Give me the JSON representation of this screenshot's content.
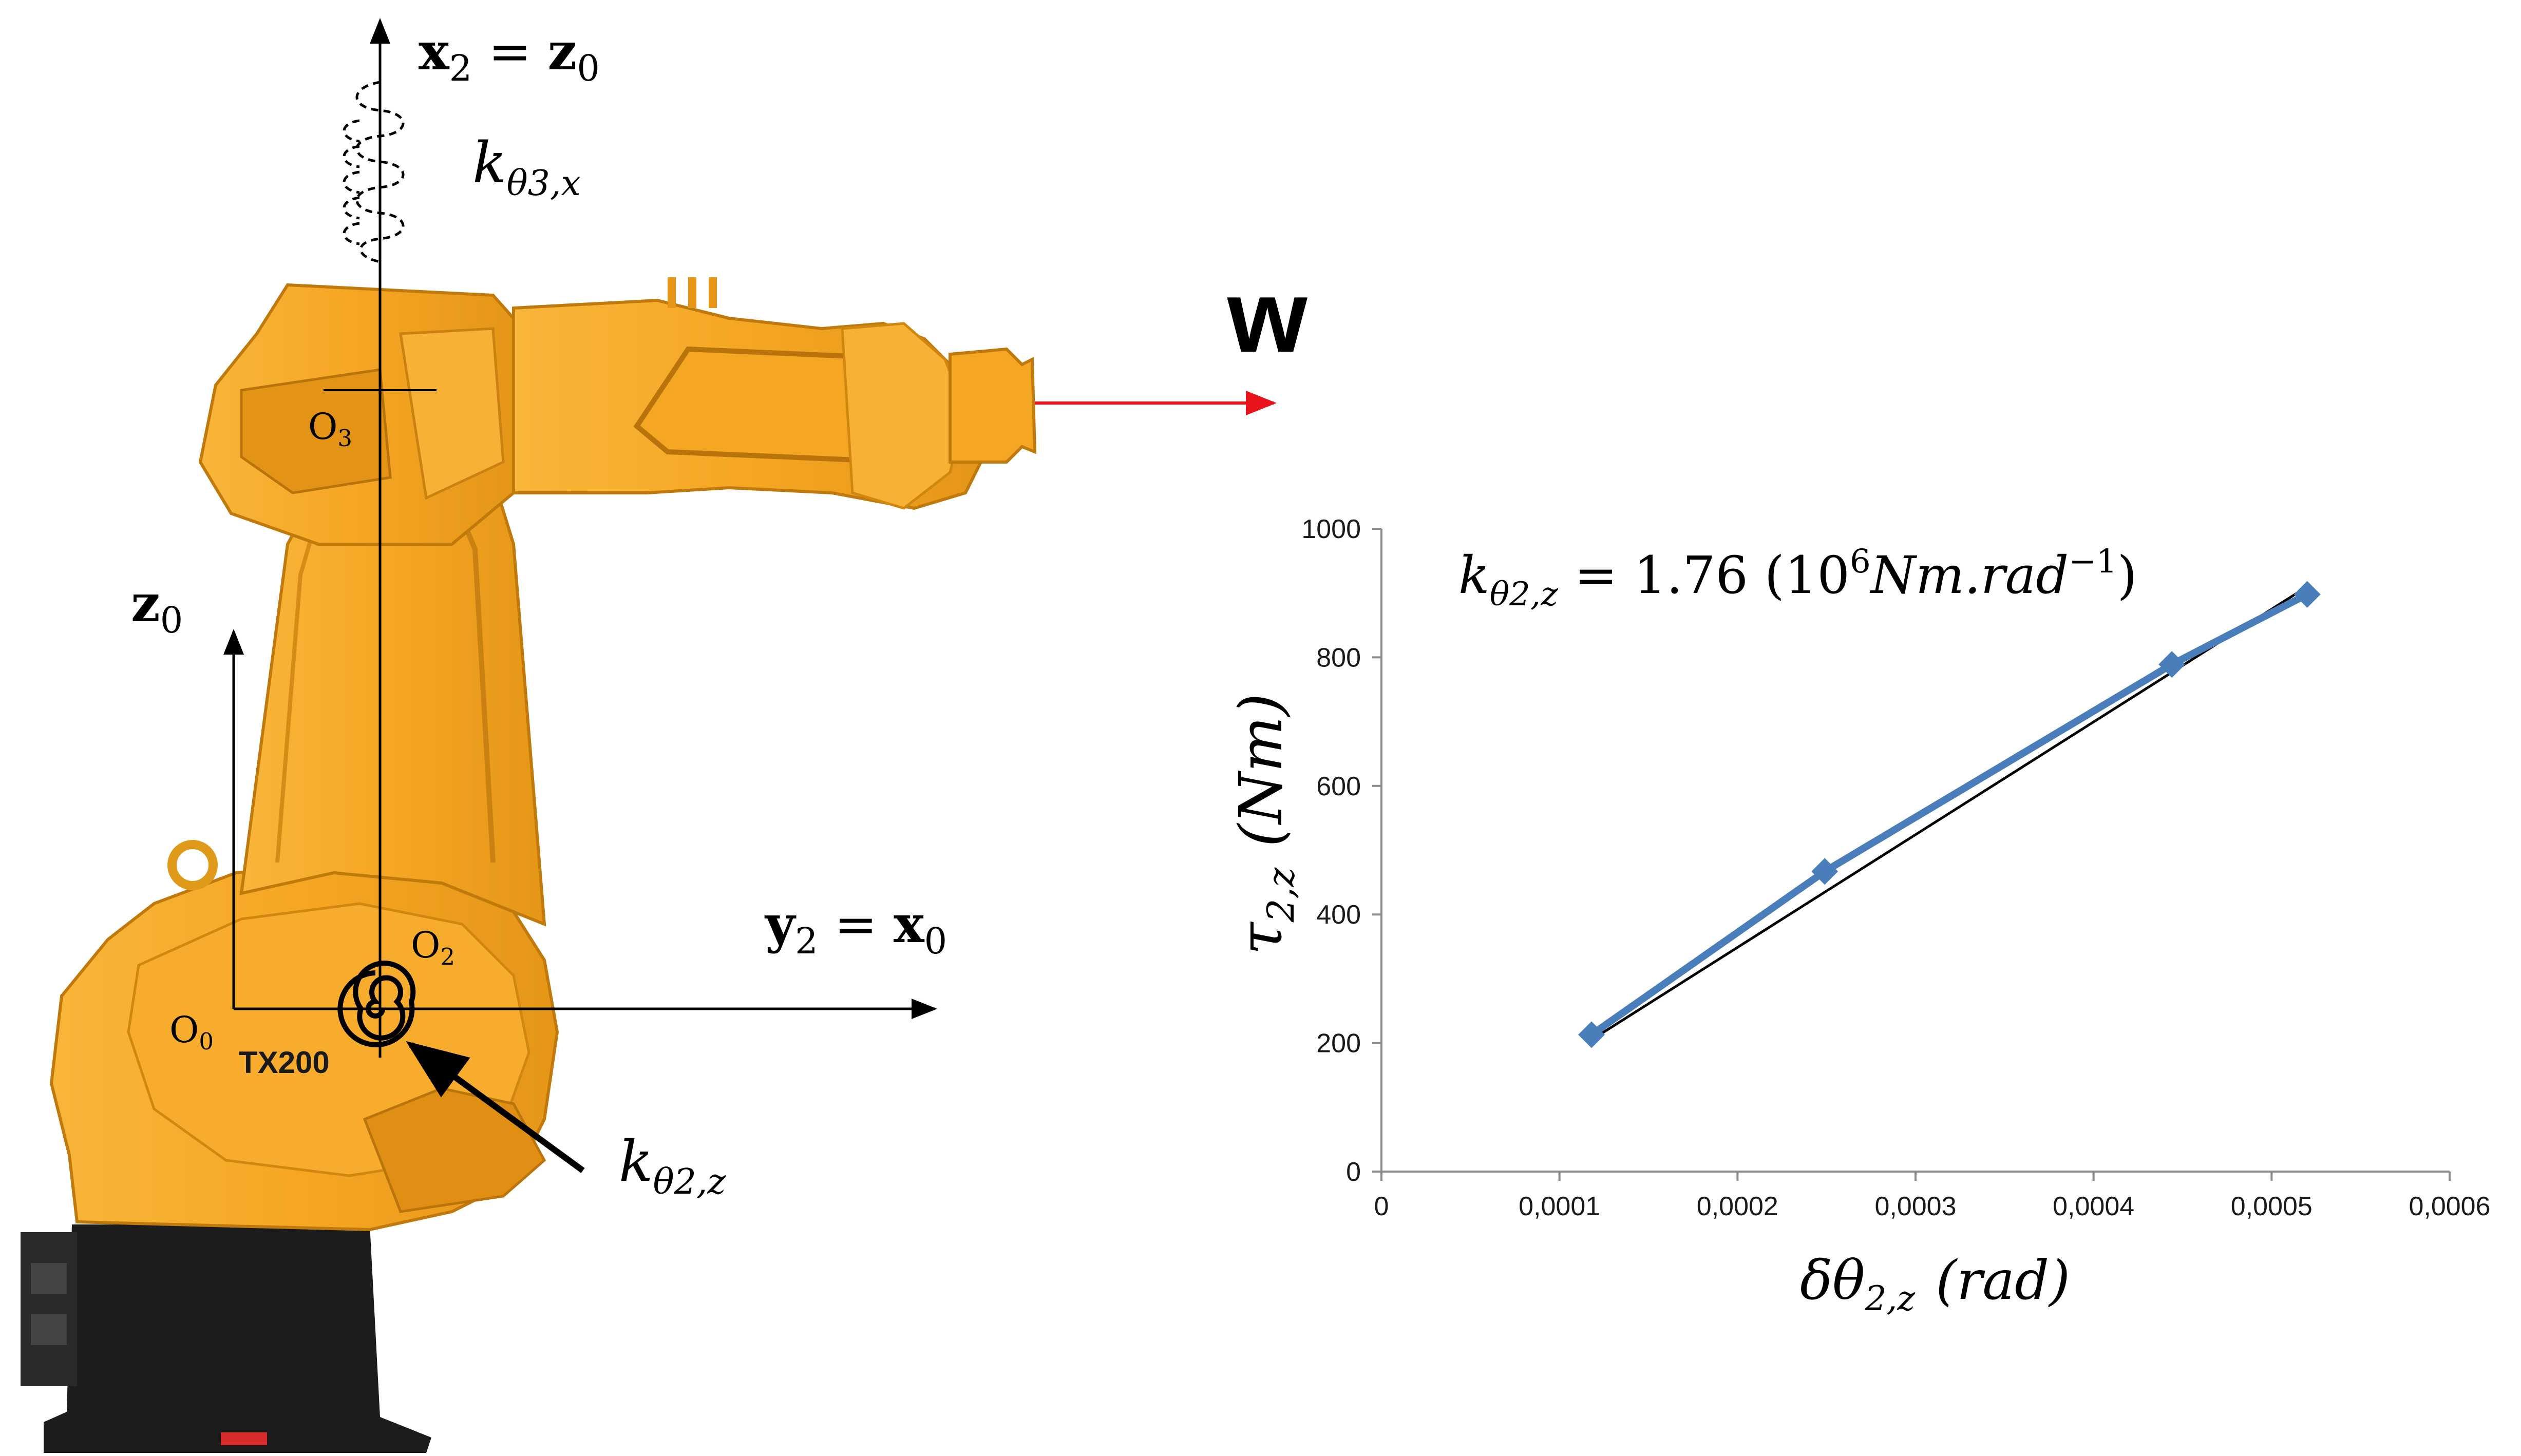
{
  "diagram": {
    "axis_vertical_label": {
      "main": "x",
      "sub1": "2",
      "eq": " = ",
      "main2": "z",
      "sub2": "0"
    },
    "spring_label": {
      "main": "k",
      "sub": "θ3,x"
    },
    "force_label": "w",
    "frame_z0_label": {
      "main": "z",
      "sub": "0"
    },
    "axis_horizontal_label": {
      "main": "y",
      "sub1": "2",
      "eq": " = ",
      "main2": "x",
      "sub2": "0"
    },
    "origin_o0": {
      "main": "O",
      "sub": "0"
    },
    "origin_o2": {
      "main": "O",
      "sub": "2"
    },
    "origin_o3": {
      "main": "O",
      "sub": "3"
    },
    "robot_model": "TX200",
    "torsion_spring_label": {
      "main": "k",
      "sub": "θ2,z"
    },
    "colors": {
      "robot_body": "#f5a623",
      "robot_shade": "#d9860b",
      "robot_base": "#1c1c1c",
      "force_arrow": "#e8131b",
      "series_line": "#4a7ebb",
      "fit_line": "#000000"
    }
  },
  "chart_data": {
    "type": "scatter",
    "title": "",
    "annotation": {
      "main": "k",
      "sub": "θ2,z",
      "text": " = 1.76 (10",
      "sup1": "6",
      "text2": "Nm.rad",
      "sup2": "−1",
      "close": ")"
    },
    "xlabel": {
      "main": "δθ",
      "sub": "2,z",
      "unit": "(rad)"
    },
    "ylabel": {
      "main": "τ",
      "sub": "2,z",
      "unit": "(Nm)"
    },
    "xlim": [
      0,
      0.0006
    ],
    "ylim": [
      0,
      1000
    ],
    "xticks": [
      0,
      0.0001,
      0.0002,
      0.0003,
      0.0004,
      0.0005,
      0.0006
    ],
    "xtick_labels": [
      "0",
      "0,0001",
      "0,0002",
      "0,0003",
      "0,0004",
      "0,0005",
      "0,0006"
    ],
    "yticks": [
      0,
      200,
      400,
      600,
      800,
      1000
    ],
    "ytick_labels": [
      "0",
      "200",
      "400",
      "600",
      "800",
      "1000"
    ],
    "grid": false,
    "series": [
      {
        "marker": "diamond",
        "x": [
          0.000118,
          0.000249,
          0.000444,
          0.00052
        ],
        "y": [
          213,
          467,
          789,
          898
        ]
      }
    ],
    "fit_line": {
      "x": [
        0.000118,
        0.00052
      ],
      "y": [
        205,
        910
      ]
    }
  }
}
